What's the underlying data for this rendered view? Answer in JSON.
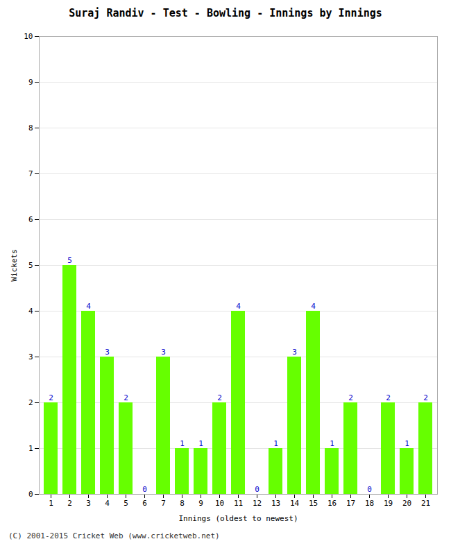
{
  "chart_data": {
    "type": "bar",
    "title": "Suraj Randiv - Test - Bowling - Innings by Innings",
    "xlabel": "Innings (oldest to newest)",
    "ylabel": "Wickets",
    "categories": [
      "1",
      "2",
      "3",
      "4",
      "5",
      "6",
      "7",
      "8",
      "9",
      "10",
      "11",
      "12",
      "13",
      "14",
      "15",
      "16",
      "17",
      "18",
      "19",
      "20",
      "21"
    ],
    "values": [
      2,
      5,
      4,
      3,
      2,
      0,
      3,
      1,
      1,
      2,
      4,
      0,
      1,
      3,
      4,
      1,
      2,
      0,
      2,
      1,
      2
    ],
    "color": "#66ff00",
    "ylim": [
      0,
      10
    ],
    "yticks": [
      0,
      1,
      2,
      3,
      4,
      5,
      6,
      7,
      8,
      9,
      10
    ],
    "grid": true,
    "data_labels": true,
    "annotations": [
      "(C) 2001-2015 Cricket Web (www.cricketweb.net)"
    ]
  }
}
